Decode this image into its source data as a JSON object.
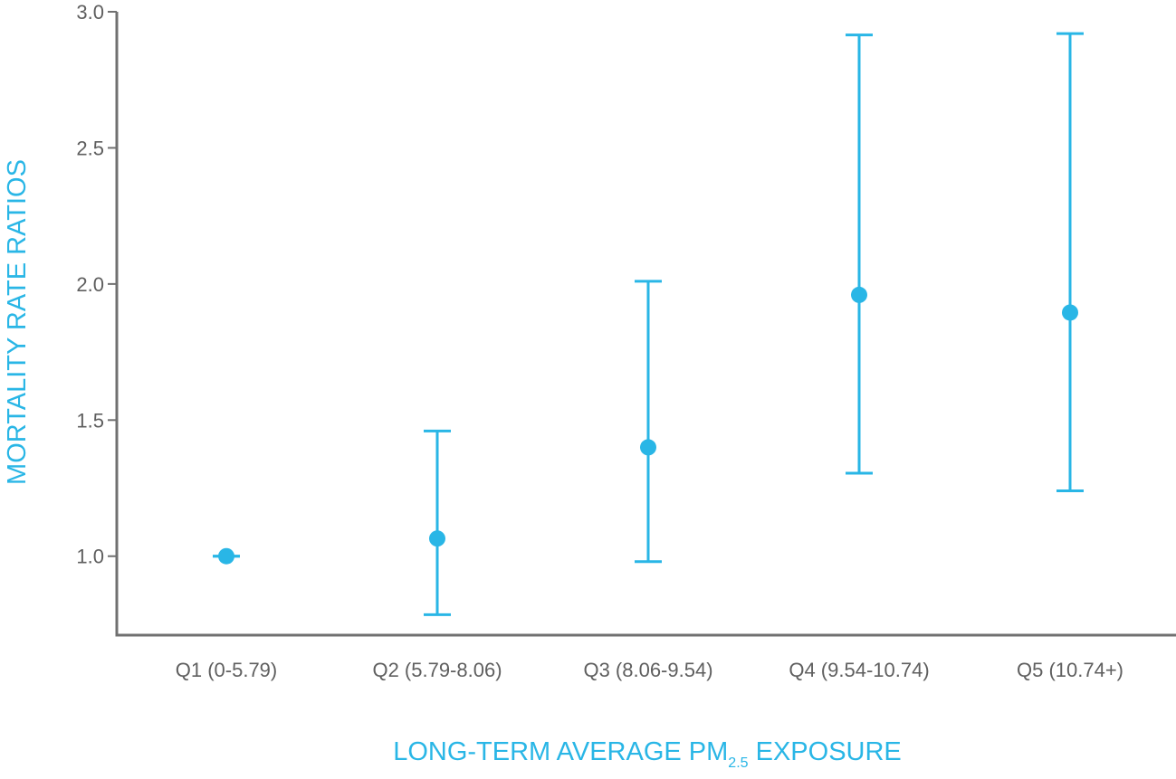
{
  "chart_data": {
    "type": "scatter",
    "subtype": "point-with-error-bars",
    "title": "",
    "xlabel": {
      "main": "LONG-TERM AVERAGE PM",
      "subscript": "2.5",
      "suffix": " EXPOSURE"
    },
    "ylabel": "MORTALITY RATE RATIOS",
    "ylim": [
      0.71,
      3.0
    ],
    "yticks": [
      {
        "value": 1.0,
        "label": "1.0"
      },
      {
        "value": 1.5,
        "label": "1.5"
      },
      {
        "value": 2.0,
        "label": "2.0"
      },
      {
        "value": 2.5,
        "label": "2.5"
      },
      {
        "value": 3.0,
        "label": "3.0"
      }
    ],
    "categories": [
      "Q1 (0-5.79)",
      "Q2 (5.79-8.06)",
      "Q3 (8.06-9.54)",
      "Q4 (9.54-10.74)",
      "Q5 (10.74+)"
    ],
    "series": [
      {
        "values": [
          1.0,
          1.065,
          1.4,
          1.96,
          1.895
        ],
        "lower": [
          1.0,
          0.785,
          0.98,
          1.305,
          1.24
        ],
        "upper": [
          1.0,
          1.46,
          2.01,
          2.915,
          2.92
        ]
      }
    ],
    "grid": false,
    "legend": "none",
    "colors": {
      "marker": "#29b6e6",
      "axis": "#707070",
      "tick_text": "#5f5f5f",
      "axis_title": "#29b6e6"
    }
  }
}
